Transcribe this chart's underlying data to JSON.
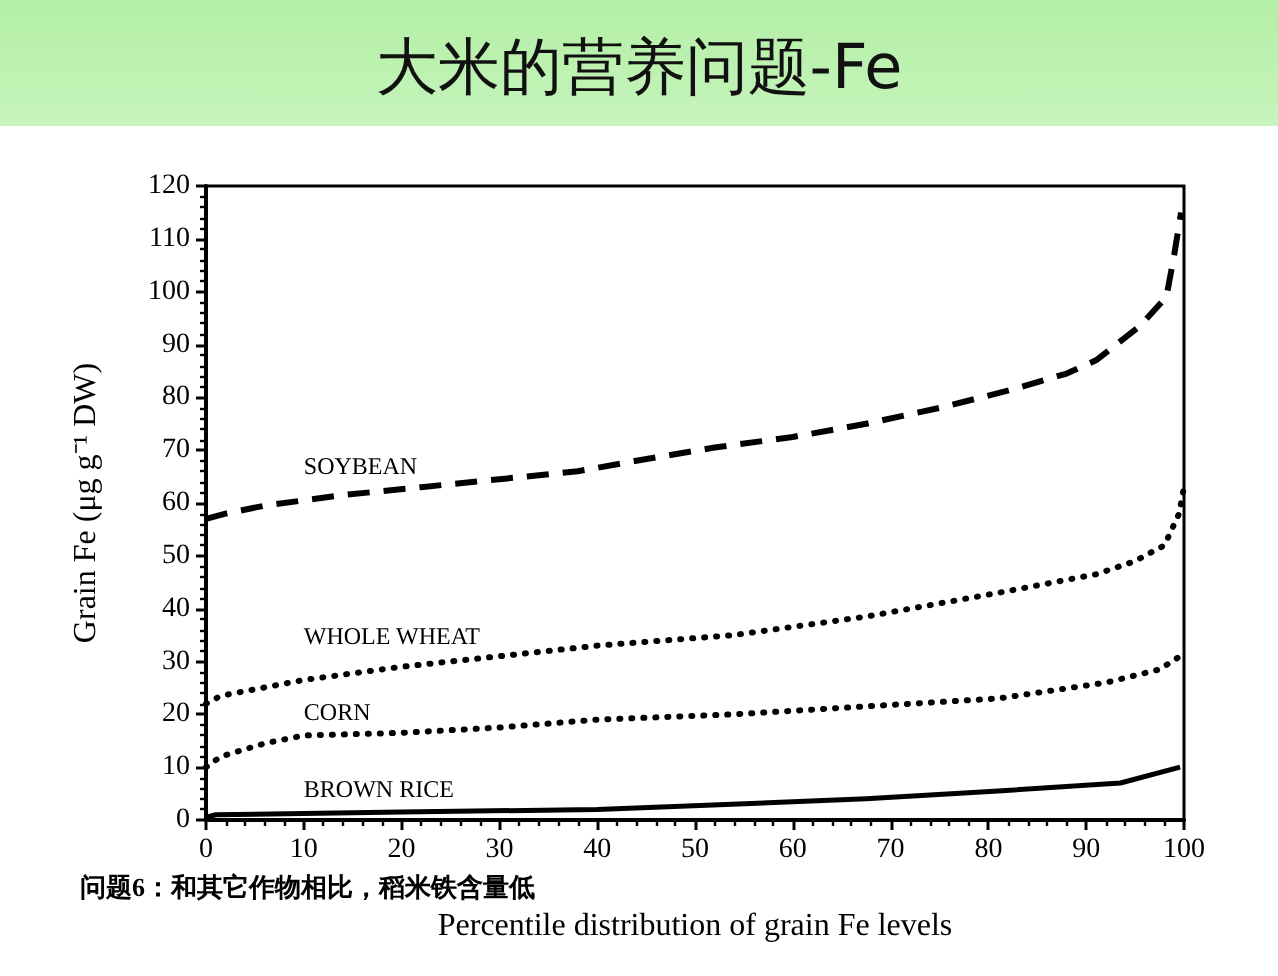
{
  "chart_data": {
    "type": "line",
    "title": "大米的营养问题-Fe",
    "xlabel": "Percentile distribution of grain Fe levels",
    "ylabel": "Grain Fe (μg g⁻¹ DW)",
    "annotations": [
      "问题6：和其它作物相比，稻米铁含量低"
    ],
    "xlim": [
      0,
      100
    ],
    "xticks": [
      0,
      10,
      20,
      30,
      40,
      50,
      60,
      70,
      80,
      90,
      100
    ],
    "ylim": [
      0,
      120
    ],
    "yticks": [
      0,
      10,
      20,
      30,
      40,
      50,
      60,
      70,
      80,
      90,
      100,
      110,
      120
    ],
    "grid": false,
    "legend": false,
    "marker": "none",
    "series": [
      {
        "name": "SOYBEAN",
        "color": "#000000",
        "line_style": "dashed",
        "x": [
          0,
          2,
          6,
          14,
          22,
          30,
          38,
          44,
          52,
          60,
          67.5,
          75,
          82.5,
          88,
          91,
          95.5,
          98.2,
          99,
          99.7
        ],
        "values": [
          57,
          58,
          59.5,
          61.5,
          63,
          64.5,
          66,
          68,
          70.5,
          72.5,
          75,
          78,
          81.5,
          84.5,
          87,
          93.5,
          99,
          107,
          115
        ]
      },
      {
        "name": "WHOLE WHEAT",
        "color": "#000000",
        "line_style": "dotted",
        "x": [
          0,
          1.5,
          10,
          20,
          30,
          40,
          54,
          67.5,
          81,
          91,
          95,
          98,
          99.5,
          100
        ],
        "values": [
          22,
          23.5,
          26.5,
          29,
          31,
          33,
          35,
          38.5,
          43,
          46.5,
          49,
          52,
          58,
          63
        ]
      },
      {
        "name": "CORN",
        "color": "#000000",
        "line_style": "dotted",
        "x": [
          0,
          1.5,
          6,
          10,
          20,
          30,
          40,
          54,
          67.5,
          81,
          92,
          97.5,
          99.6
        ],
        "values": [
          10,
          12,
          14.5,
          16,
          16.5,
          17.5,
          19,
          20,
          21.5,
          23,
          26,
          28.5,
          31
        ]
      },
      {
        "name": "BROWN RICE",
        "color": "#000000",
        "line_style": "solid",
        "x": [
          0,
          1,
          20,
          40,
          67.5,
          81,
          93.5,
          99.6
        ],
        "values": [
          0.5,
          1,
          1.5,
          2,
          4,
          5.5,
          7,
          10
        ]
      }
    ]
  }
}
